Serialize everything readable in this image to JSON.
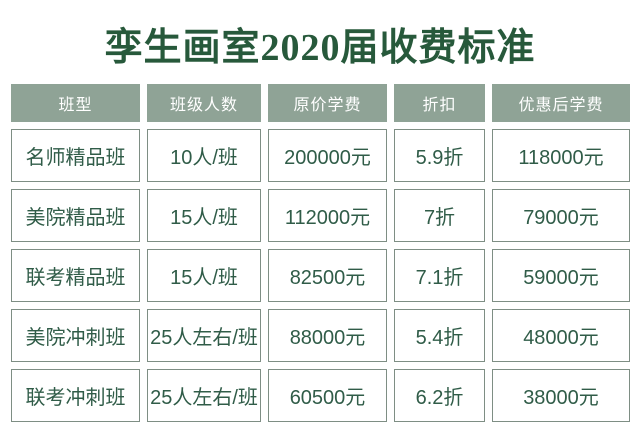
{
  "page": {
    "title": "孪生画室2020届收费标准"
  },
  "colors": {
    "title_text": "#27593b",
    "header_background": "#8fa396",
    "header_text": "#ffffff",
    "cell_border": "#7e8e84",
    "cell_text": "#305c48",
    "page_background": "#ffffff"
  },
  "chart_data": {
    "type": "table",
    "title": "孪生画室2020届收费标准",
    "columns": [
      "班型",
      "班级人数",
      "原价学费",
      "折扣",
      "优惠后学费"
    ],
    "rows": [
      [
        "名师精品班",
        "10人/班",
        "200000元",
        "5.9折",
        "118000元"
      ],
      [
        "美院精品班",
        "15人/班",
        "112000元",
        "7折",
        "79000元"
      ],
      [
        "联考精品班",
        "15人/班",
        "82500元",
        "7.1折",
        "59000元"
      ],
      [
        "美院冲刺班",
        "25人左右/班",
        "88000元",
        "5.4折",
        "48000元"
      ],
      [
        "联考冲刺班",
        "25人左右/班",
        "60500元",
        "6.2折",
        "38000元"
      ]
    ]
  }
}
